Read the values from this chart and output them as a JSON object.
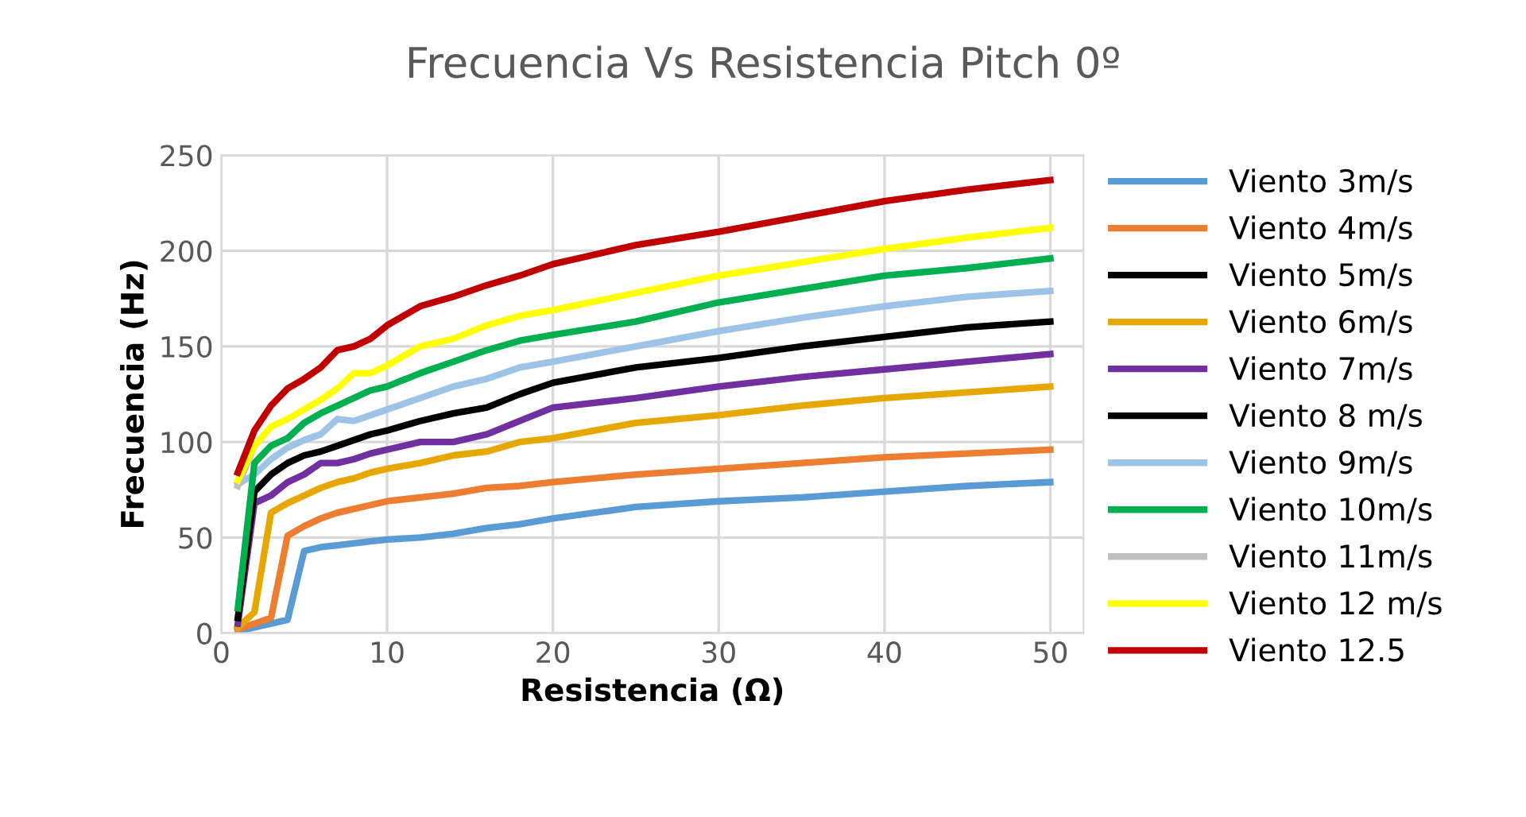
{
  "chart_data": {
    "type": "line",
    "title": "Frecuencia Vs Resistencia Pitch 0º",
    "xlabel": "Resistencia (Ω)",
    "ylabel": "Frecuencia (Hz)",
    "x": [
      1,
      2,
      3,
      4,
      5,
      6,
      7,
      8,
      9,
      10,
      12,
      14,
      16,
      18,
      20,
      25,
      30,
      35,
      40,
      45,
      50
    ],
    "xlim": [
      0,
      52
    ],
    "xticks": [
      0,
      10,
      20,
      30,
      40,
      50
    ],
    "ylim": [
      0,
      250
    ],
    "yticks": [
      0,
      50,
      100,
      150,
      200,
      250
    ],
    "grid": true,
    "legend": "right",
    "marker": "none",
    "line_style": "solid",
    "series": [
      {
        "name": "Viento 3m/s",
        "color": "#5b9bd5",
        "values": [
          1,
          3,
          5,
          7,
          43,
          45,
          46,
          47,
          48,
          49,
          50,
          52,
          55,
          57,
          60,
          66,
          69,
          71,
          74,
          77,
          79
        ]
      },
      {
        "name": "Viento 4m/s",
        "color": "#ed7d31",
        "values": [
          2,
          5,
          8,
          51,
          56,
          60,
          63,
          65,
          67,
          69,
          71,
          73,
          76,
          77,
          79,
          83,
          86,
          89,
          92,
          94,
          96
        ]
      },
      {
        "name": "Viento 5m/s",
        "color": "#000000",
        "values": [
          null,
          null,
          null,
          null,
          null,
          null,
          null,
          null,
          null,
          null,
          null,
          null,
          null,
          null,
          null,
          null,
          null,
          null,
          null,
          null,
          null
        ]
      },
      {
        "name": "Viento 6m/s",
        "color": "#e6a800",
        "values": [
          3,
          11,
          63,
          68,
          72,
          76,
          79,
          81,
          84,
          86,
          89,
          93,
          95,
          100,
          102,
          110,
          114,
          119,
          123,
          126,
          129
        ]
      },
      {
        "name": "Viento 7m/s",
        "color": "#7030a0",
        "values": [
          5,
          68,
          72,
          79,
          83,
          89,
          89,
          91,
          94,
          96,
          100,
          100,
          104,
          111,
          118,
          123,
          129,
          134,
          138,
          142,
          146
        ]
      },
      {
        "name": "Viento 8 m/s",
        "color": "#000000",
        "values": [
          8,
          74,
          83,
          89,
          93,
          95,
          98,
          101,
          104,
          106,
          111,
          115,
          118,
          125,
          131,
          139,
          144,
          150,
          155,
          160,
          163
        ]
      },
      {
        "name": "Viento 9m/s",
        "color": "#9dc3e6",
        "values": [
          78,
          83,
          91,
          97,
          101,
          104,
          112,
          111,
          114,
          117,
          123,
          129,
          133,
          139,
          142,
          150,
          158,
          165,
          171,
          176,
          179
        ]
      },
      {
        "name": "Viento 10m/s",
        "color": "#00b050",
        "values": [
          13,
          89,
          98,
          102,
          110,
          115,
          119,
          123,
          127,
          129,
          136,
          142,
          148,
          153,
          156,
          163,
          173,
          180,
          187,
          191,
          196
        ]
      },
      {
        "name": "Viento 11m/s",
        "color": "#bfbfbf",
        "values": [
          77,
          98,
          null,
          null,
          null,
          null,
          null,
          null,
          null,
          null,
          null,
          null,
          null,
          null,
          null,
          null,
          null,
          null,
          null,
          null,
          null
        ]
      },
      {
        "name": "Viento 12 m/s",
        "color": "#ffff00",
        "values": [
          80,
          98,
          108,
          112,
          117,
          122,
          128,
          136,
          136,
          140,
          150,
          154,
          161,
          166,
          169,
          178,
          187,
          194,
          201,
          207,
          212
        ]
      },
      {
        "name": "Viento 12.5",
        "color": "#c00000",
        "values": [
          84,
          106,
          119,
          128,
          133,
          139,
          148,
          150,
          154,
          161,
          171,
          176,
          182,
          187,
          193,
          203,
          210,
          218,
          226,
          232,
          237
        ]
      }
    ]
  }
}
